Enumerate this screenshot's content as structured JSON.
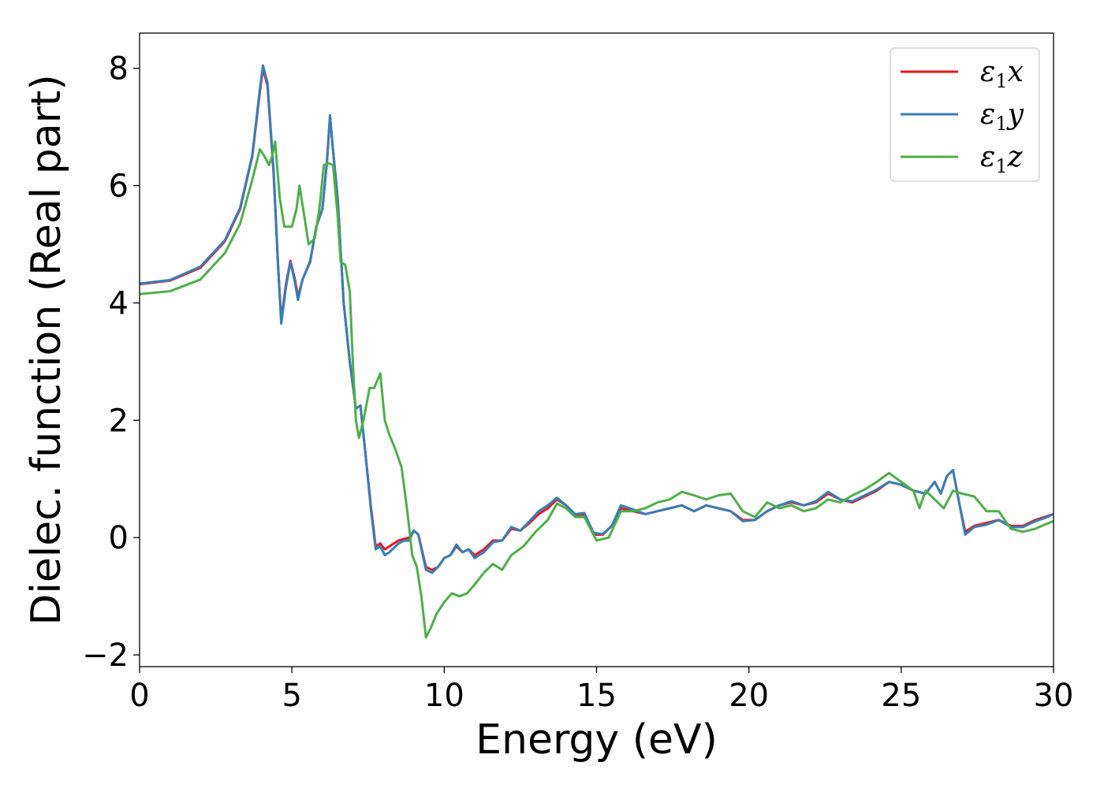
{
  "chart_data": {
    "type": "line",
    "xlabel": "Energy (eV)",
    "ylabel": "Dielec. function (Real part)",
    "xlim": [
      0,
      30
    ],
    "ylim": [
      -2.2,
      8.6
    ],
    "x_ticks": [
      0,
      5,
      10,
      15,
      20,
      25,
      30
    ],
    "x_tick_labels": [
      "0",
      "5",
      "10",
      "15",
      "20",
      "25",
      "30"
    ],
    "y_ticks": [
      -2,
      0,
      2,
      4,
      6,
      8
    ],
    "y_tick_labels": [
      "−2",
      "0",
      "2",
      "4",
      "6",
      "8"
    ],
    "grid": false,
    "legend_position": "top-right",
    "series": [
      {
        "name": "ε₁x",
        "legend_base": "ε",
        "legend_sub": "1",
        "legend_suffix": "x",
        "color": "#e41a1c",
        "points": [
          [
            0,
            4.32
          ],
          [
            1,
            4.38
          ],
          [
            2,
            4.6
          ],
          [
            2.8,
            5.05
          ],
          [
            3.3,
            5.6
          ],
          [
            3.7,
            6.5
          ],
          [
            3.95,
            7.6
          ],
          [
            4.05,
            8.0
          ],
          [
            4.2,
            7.7
          ],
          [
            4.4,
            6.2
          ],
          [
            4.55,
            4.6
          ],
          [
            4.65,
            3.7
          ],
          [
            4.8,
            4.3
          ],
          [
            4.95,
            4.72
          ],
          [
            5.1,
            4.4
          ],
          [
            5.2,
            4.1
          ],
          [
            5.35,
            4.4
          ],
          [
            5.6,
            4.7
          ],
          [
            5.8,
            5.3
          ],
          [
            6.0,
            5.6
          ],
          [
            6.15,
            6.4
          ],
          [
            6.25,
            7.18
          ],
          [
            6.35,
            6.6
          ],
          [
            6.5,
            5.8
          ],
          [
            6.7,
            4.0
          ],
          [
            6.9,
            3.0
          ],
          [
            7.1,
            2.2
          ],
          [
            7.25,
            2.25
          ],
          [
            7.4,
            1.5
          ],
          [
            7.6,
            0.5
          ],
          [
            7.75,
            -0.15
          ],
          [
            7.9,
            -0.1
          ],
          [
            8.05,
            -0.2
          ],
          [
            8.2,
            -0.15
          ],
          [
            8.5,
            -0.05
          ],
          [
            8.7,
            -0.02
          ],
          [
            8.85,
            0.0
          ],
          [
            9.0,
            0.12
          ],
          [
            9.15,
            0.05
          ],
          [
            9.4,
            -0.5
          ],
          [
            9.6,
            -0.55
          ],
          [
            9.8,
            -0.5
          ],
          [
            10.0,
            -0.35
          ],
          [
            10.2,
            -0.3
          ],
          [
            10.4,
            -0.15
          ],
          [
            10.6,
            -0.25
          ],
          [
            10.8,
            -0.2
          ],
          [
            11.0,
            -0.3
          ],
          [
            11.3,
            -0.2
          ],
          [
            11.6,
            -0.05
          ],
          [
            11.9,
            -0.05
          ],
          [
            12.2,
            0.15
          ],
          [
            12.5,
            0.12
          ],
          [
            12.8,
            0.25
          ],
          [
            13.1,
            0.4
          ],
          [
            13.4,
            0.5
          ],
          [
            13.7,
            0.65
          ],
          [
            14.0,
            0.55
          ],
          [
            14.3,
            0.38
          ],
          [
            14.6,
            0.4
          ],
          [
            14.9,
            0.05
          ],
          [
            15.2,
            0.05
          ],
          [
            15.5,
            0.2
          ],
          [
            15.8,
            0.5
          ],
          [
            16.2,
            0.45
          ],
          [
            16.6,
            0.4
          ],
          [
            17.0,
            0.45
          ],
          [
            17.4,
            0.5
          ],
          [
            17.8,
            0.55
          ],
          [
            18.2,
            0.45
          ],
          [
            18.6,
            0.55
          ],
          [
            19.0,
            0.5
          ],
          [
            19.4,
            0.45
          ],
          [
            19.8,
            0.3
          ],
          [
            20.2,
            0.3
          ],
          [
            20.6,
            0.45
          ],
          [
            21.0,
            0.55
          ],
          [
            21.4,
            0.6
          ],
          [
            21.8,
            0.55
          ],
          [
            22.2,
            0.6
          ],
          [
            22.6,
            0.75
          ],
          [
            23.0,
            0.65
          ],
          [
            23.4,
            0.6
          ],
          [
            23.8,
            0.7
          ],
          [
            24.2,
            0.8
          ],
          [
            24.6,
            0.95
          ],
          [
            25.0,
            0.9
          ],
          [
            25.4,
            0.8
          ],
          [
            25.8,
            0.75
          ],
          [
            26.1,
            0.95
          ],
          [
            26.3,
            0.75
          ],
          [
            26.5,
            1.05
          ],
          [
            26.7,
            1.15
          ],
          [
            26.9,
            0.6
          ],
          [
            27.1,
            0.1
          ],
          [
            27.4,
            0.2
          ],
          [
            27.8,
            0.25
          ],
          [
            28.2,
            0.3
          ],
          [
            28.6,
            0.2
          ],
          [
            29.0,
            0.2
          ],
          [
            29.4,
            0.3
          ],
          [
            29.7,
            0.35
          ],
          [
            30.0,
            0.4
          ]
        ]
      },
      {
        "name": "ε₁y",
        "legend_base": "ε",
        "legend_sub": "1",
        "legend_suffix": "y",
        "color": "#377eb8",
        "points": [
          [
            0,
            4.33
          ],
          [
            1,
            4.39
          ],
          [
            2,
            4.62
          ],
          [
            2.8,
            5.07
          ],
          [
            3.3,
            5.62
          ],
          [
            3.7,
            6.52
          ],
          [
            3.95,
            7.65
          ],
          [
            4.05,
            8.05
          ],
          [
            4.2,
            7.75
          ],
          [
            4.4,
            6.25
          ],
          [
            4.55,
            4.6
          ],
          [
            4.65,
            3.65
          ],
          [
            4.8,
            4.25
          ],
          [
            4.95,
            4.7
          ],
          [
            5.1,
            4.35
          ],
          [
            5.2,
            4.05
          ],
          [
            5.35,
            4.4
          ],
          [
            5.6,
            4.72
          ],
          [
            5.8,
            5.3
          ],
          [
            6.0,
            5.6
          ],
          [
            6.15,
            6.4
          ],
          [
            6.25,
            7.2
          ],
          [
            6.35,
            6.6
          ],
          [
            6.5,
            5.8
          ],
          [
            6.7,
            4.0
          ],
          [
            6.9,
            3.0
          ],
          [
            7.1,
            2.2
          ],
          [
            7.25,
            2.25
          ],
          [
            7.4,
            1.5
          ],
          [
            7.6,
            0.45
          ],
          [
            7.75,
            -0.2
          ],
          [
            7.9,
            -0.15
          ],
          [
            8.05,
            -0.3
          ],
          [
            8.2,
            -0.25
          ],
          [
            8.5,
            -0.1
          ],
          [
            8.7,
            -0.05
          ],
          [
            8.85,
            -0.05
          ],
          [
            9.0,
            0.12
          ],
          [
            9.15,
            0.05
          ],
          [
            9.4,
            -0.55
          ],
          [
            9.6,
            -0.6
          ],
          [
            9.8,
            -0.5
          ],
          [
            10.0,
            -0.35
          ],
          [
            10.2,
            -0.3
          ],
          [
            10.4,
            -0.12
          ],
          [
            10.6,
            -0.25
          ],
          [
            10.8,
            -0.2
          ],
          [
            11.0,
            -0.35
          ],
          [
            11.3,
            -0.25
          ],
          [
            11.6,
            -0.08
          ],
          [
            11.9,
            -0.05
          ],
          [
            12.2,
            0.18
          ],
          [
            12.5,
            0.12
          ],
          [
            12.8,
            0.28
          ],
          [
            13.1,
            0.45
          ],
          [
            13.4,
            0.55
          ],
          [
            13.7,
            0.68
          ],
          [
            14.0,
            0.55
          ],
          [
            14.3,
            0.4
          ],
          [
            14.6,
            0.42
          ],
          [
            14.9,
            0.08
          ],
          [
            15.2,
            0.06
          ],
          [
            15.5,
            0.2
          ],
          [
            15.8,
            0.55
          ],
          [
            16.2,
            0.48
          ],
          [
            16.6,
            0.4
          ],
          [
            17.0,
            0.45
          ],
          [
            17.4,
            0.5
          ],
          [
            17.8,
            0.55
          ],
          [
            18.2,
            0.45
          ],
          [
            18.6,
            0.55
          ],
          [
            19.0,
            0.5
          ],
          [
            19.4,
            0.45
          ],
          [
            19.8,
            0.28
          ],
          [
            20.2,
            0.3
          ],
          [
            20.6,
            0.45
          ],
          [
            21.0,
            0.55
          ],
          [
            21.4,
            0.62
          ],
          [
            21.8,
            0.55
          ],
          [
            22.2,
            0.62
          ],
          [
            22.6,
            0.78
          ],
          [
            23.0,
            0.65
          ],
          [
            23.4,
            0.62
          ],
          [
            23.8,
            0.72
          ],
          [
            24.2,
            0.82
          ],
          [
            24.6,
            0.95
          ],
          [
            25.0,
            0.9
          ],
          [
            25.4,
            0.8
          ],
          [
            25.8,
            0.75
          ],
          [
            26.1,
            0.95
          ],
          [
            26.3,
            0.75
          ],
          [
            26.5,
            1.05
          ],
          [
            26.7,
            1.15
          ],
          [
            26.9,
            0.6
          ],
          [
            27.1,
            0.05
          ],
          [
            27.4,
            0.18
          ],
          [
            27.8,
            0.22
          ],
          [
            28.2,
            0.3
          ],
          [
            28.6,
            0.18
          ],
          [
            29.0,
            0.18
          ],
          [
            29.4,
            0.28
          ],
          [
            29.7,
            0.33
          ],
          [
            30.0,
            0.4
          ]
        ]
      },
      {
        "name": "ε₁z",
        "legend_base": "ε",
        "legend_sub": "1",
        "legend_suffix": "z",
        "color": "#4daf4a",
        "points": [
          [
            0,
            4.15
          ],
          [
            1,
            4.2
          ],
          [
            2,
            4.4
          ],
          [
            2.8,
            4.85
          ],
          [
            3.3,
            5.35
          ],
          [
            3.7,
            6.1
          ],
          [
            3.95,
            6.62
          ],
          [
            4.1,
            6.5
          ],
          [
            4.25,
            6.35
          ],
          [
            4.35,
            6.5
          ],
          [
            4.45,
            6.75
          ],
          [
            4.6,
            5.8
          ],
          [
            4.75,
            5.3
          ],
          [
            5.0,
            5.3
          ],
          [
            5.15,
            5.6
          ],
          [
            5.25,
            6.0
          ],
          [
            5.4,
            5.5
          ],
          [
            5.55,
            5.0
          ],
          [
            5.75,
            5.1
          ],
          [
            5.9,
            5.6
          ],
          [
            6.05,
            6.35
          ],
          [
            6.2,
            6.38
          ],
          [
            6.35,
            6.35
          ],
          [
            6.5,
            5.5
          ],
          [
            6.6,
            4.7
          ],
          [
            6.75,
            4.65
          ],
          [
            6.9,
            4.2
          ],
          [
            7.0,
            3.0
          ],
          [
            7.1,
            2.0
          ],
          [
            7.2,
            1.7
          ],
          [
            7.35,
            2.0
          ],
          [
            7.55,
            2.55
          ],
          [
            7.7,
            2.55
          ],
          [
            7.9,
            2.8
          ],
          [
            8.05,
            2.0
          ],
          [
            8.2,
            1.75
          ],
          [
            8.4,
            1.5
          ],
          [
            8.6,
            1.2
          ],
          [
            8.8,
            0.4
          ],
          [
            8.95,
            -0.3
          ],
          [
            9.1,
            -0.5
          ],
          [
            9.25,
            -1.0
          ],
          [
            9.4,
            -1.7
          ],
          [
            9.55,
            -1.55
          ],
          [
            9.75,
            -1.3
          ],
          [
            10.0,
            -1.1
          ],
          [
            10.25,
            -0.95
          ],
          [
            10.5,
            -1.0
          ],
          [
            10.75,
            -0.95
          ],
          [
            11.0,
            -0.8
          ],
          [
            11.3,
            -0.6
          ],
          [
            11.6,
            -0.45
          ],
          [
            11.9,
            -0.55
          ],
          [
            12.2,
            -0.3
          ],
          [
            12.6,
            -0.15
          ],
          [
            13.0,
            0.1
          ],
          [
            13.4,
            0.3
          ],
          [
            13.7,
            0.58
          ],
          [
            14.0,
            0.5
          ],
          [
            14.3,
            0.35
          ],
          [
            14.6,
            0.35
          ],
          [
            15.0,
            -0.05
          ],
          [
            15.4,
            0.0
          ],
          [
            15.8,
            0.45
          ],
          [
            16.2,
            0.45
          ],
          [
            16.6,
            0.5
          ],
          [
            17.0,
            0.6
          ],
          [
            17.4,
            0.65
          ],
          [
            17.8,
            0.78
          ],
          [
            18.2,
            0.72
          ],
          [
            18.6,
            0.65
          ],
          [
            19.0,
            0.72
          ],
          [
            19.4,
            0.75
          ],
          [
            19.8,
            0.45
          ],
          [
            20.2,
            0.35
          ],
          [
            20.6,
            0.6
          ],
          [
            21.0,
            0.5
          ],
          [
            21.4,
            0.55
          ],
          [
            21.8,
            0.45
          ],
          [
            22.2,
            0.5
          ],
          [
            22.6,
            0.65
          ],
          [
            23.0,
            0.6
          ],
          [
            23.4,
            0.72
          ],
          [
            23.8,
            0.82
          ],
          [
            24.2,
            0.95
          ],
          [
            24.6,
            1.1
          ],
          [
            25.0,
            0.95
          ],
          [
            25.4,
            0.8
          ],
          [
            25.6,
            0.5
          ],
          [
            25.8,
            0.8
          ],
          [
            26.1,
            0.65
          ],
          [
            26.4,
            0.5
          ],
          [
            26.7,
            0.8
          ],
          [
            27.0,
            0.75
          ],
          [
            27.4,
            0.7
          ],
          [
            27.8,
            0.45
          ],
          [
            28.2,
            0.45
          ],
          [
            28.6,
            0.15
          ],
          [
            29.0,
            0.1
          ],
          [
            29.4,
            0.15
          ],
          [
            29.7,
            0.22
          ],
          [
            30.0,
            0.28
          ]
        ]
      }
    ]
  }
}
